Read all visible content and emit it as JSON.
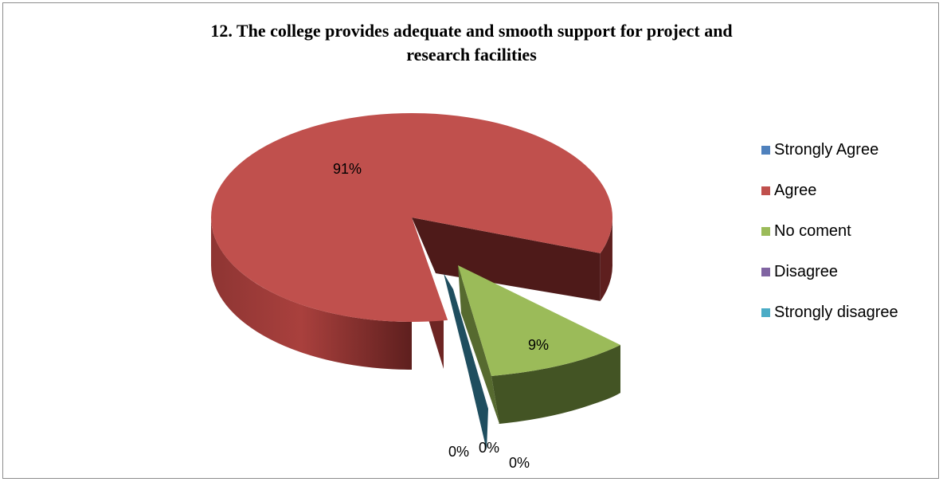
{
  "chart_data": {
    "type": "pie",
    "style": "3d-exploded",
    "title_lines": [
      "12. The college provides adequate and smooth support for project and",
      "research facilities"
    ],
    "categories": [
      "Strongly Agree",
      "Agree",
      "No coment",
      "Disagree",
      "Strongly disagree"
    ],
    "values": [
      0,
      91,
      9,
      0,
      0
    ],
    "data_labels": [
      "0%",
      "91%",
      "9%",
      "0%",
      "0%"
    ],
    "colors": [
      "#4f81bd",
      "#c0504d",
      "#9bbb59",
      "#8064a2",
      "#4bacc6"
    ],
    "legend_position": "right"
  }
}
